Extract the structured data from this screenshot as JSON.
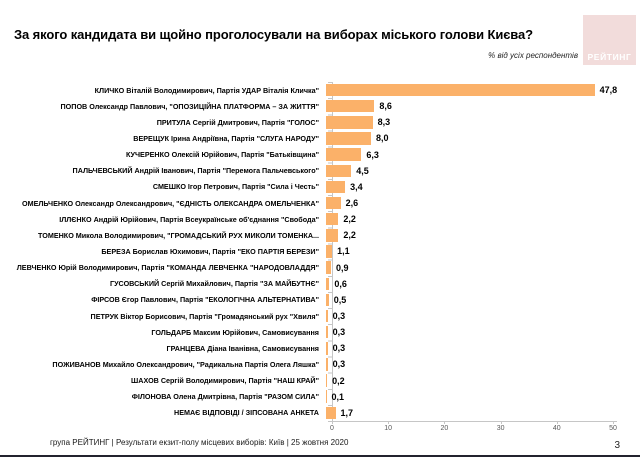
{
  "header": {
    "title": "За якого кандидата ви щойно проголосували на виборах міського голови Києва?",
    "subtitle": "% від усіх респондентів",
    "logo_text": "РЕЙТИНГ"
  },
  "chart_data": {
    "type": "bar",
    "orientation": "horizontal",
    "title": "За якого кандидата ви щойно проголосували на виборах міського голови Києва?",
    "xlabel": "% від усіх респондентів",
    "xlim": [
      0,
      50
    ],
    "x_ticks": [
      "0",
      "10",
      "20",
      "30",
      "40",
      "50"
    ],
    "grid": false,
    "categories": [
      "КЛИЧКО Віталій Володимирович, Партія УДАР Віталія Кличка\"",
      "ПОПОВ Олександр Павлович, \"ОПОЗИЦІЙНА ПЛАТФОРМА – ЗА ЖИТТЯ\"",
      "ПРИТУЛА Сергій Дмитрович, Партія \"ГОЛОС\"",
      "ВЕРЕЩУК Ірина Андріївна, Партія \"СЛУГА НАРОДУ\"",
      "КУЧЕРЕНКО Олексій Юрійович, Партія \"Батьківщина\"",
      "ПАЛЬЧЕВСЬКИЙ Андрій Іванович, Партія \"Перемога Пальчевського\"",
      "СМЕШКО Ігор Петрович, Партія \"Сила і Честь\"",
      "ОМЕЛЬЧЕНКО Олександр Олександрович, \"ЄДНІСТЬ ОЛЕКСАНДРА ОМЕЛЬЧЕНКА\"",
      "ІЛЛЄНКО Андрій Юрійович, Партія Всеукраїнське об'єднання \"Свобода\"",
      "ТОМЕНКО Микола Володимирович, \"ГРОМАДСЬКИЙ РУХ МИКОЛИ ТОМЕНКА...",
      "БЕРЕЗА Борислав Юхимович, Партія \"ЕКО ПАРТІЯ БЕРЕЗИ\"",
      "ЛЕВЧЕНКО Юрій Володимирович, Партія \"КОМАНДА ЛЕВЧЕНКА \"НАРОДОВЛАДДЯ\"",
      "ГУСОВСЬКИЙ Сергій Михайлович, Партія \"ЗА МАЙБУТНЄ\"",
      "ФІРСОВ Єгор Павлович, Партія \"ЕКОЛОГІЧНА АЛЬТЕРНАТИВА\"",
      "ПЕТРУК Віктор Борисович, Партія \"Громадянський рух \"Хвиля\"",
      "ГОЛЬДАРБ Максим Юрійович, Самовисування",
      "ГРАНЦЕВА Діана Іванівна, Самовисування",
      "ПОЖИВАНОВ Михайло Олександрович, \"Радикальна Партія Олега Ляшка\"",
      "ШАХОВ Сергій Володимирович, Партія \"НАШ КРАЙ\"",
      "ФІЛОНОВА Олена Дмитрівна, Партія \"РАЗОМ СИЛА\"",
      "НЕМАЄ ВІДПОВІДІ / ЗІПСОВАНА АНКЕТА"
    ],
    "values": [
      47.8,
      8.6,
      8.3,
      8.0,
      6.3,
      4.5,
      3.4,
      2.6,
      2.2,
      2.2,
      1.1,
      0.9,
      0.6,
      0.5,
      0.3,
      0.3,
      0.3,
      0.3,
      0.2,
      0.1,
      1.7
    ],
    "value_labels": [
      "47,8",
      "8,6",
      "8,3",
      "8,0",
      "6,3",
      "4,5",
      "3,4",
      "2,6",
      "2,2",
      "2,2",
      "1,1",
      "0,9",
      "0,6",
      "0,5",
      "0,3",
      "0,3",
      "0,3",
      "0,3",
      "0,2",
      "0,1",
      "1,7"
    ]
  },
  "footer": {
    "text": "група РЕЙТИНГ | Результати екзит-полу місцевих виборів: Київ | 25 жовтня 2020",
    "page_number": "3"
  },
  "colors": {
    "bar": "#FBB169",
    "logo_bg": "#F2DCDB",
    "axis": "#C6C6C6",
    "footer_line": "#23232E"
  }
}
